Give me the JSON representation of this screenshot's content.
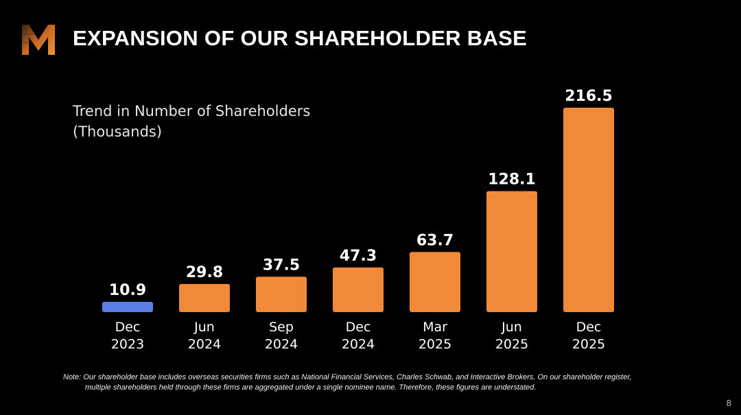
{
  "slide": {
    "title": "EXPANSION OF OUR SHAREHOLDER BASE",
    "page_number": "8",
    "note_line1": "Note: Our shareholder base includes overseas securities firms such as National Financial Services, Charles Schwab, and Interactive Brokers. On our shareholder register,",
    "note_line2": "multiple shareholders held through these firms are aggregated under a single nominee name. Therefore, these figures are understated."
  },
  "colors": {
    "background": "#000000",
    "bar_primary": "#F08A38",
    "bar_highlight": "#5B7FE6",
    "logo_orange": "#E8812E"
  },
  "logo": {
    "icon": "m-logo-icon"
  },
  "chart_data": {
    "type": "bar",
    "title_line1": "Trend in Number of Shareholders",
    "title_line2": "(Thousands)",
    "xlabel": "",
    "ylabel": "",
    "ylim": [
      0,
      216.5
    ],
    "categories": [
      [
        "Dec",
        "2023"
      ],
      [
        "Jun",
        "2024"
      ],
      [
        "Sep",
        "2024"
      ],
      [
        "Dec",
        "2024"
      ],
      [
        "Mar",
        "2025"
      ],
      [
        "Jun",
        "2025"
      ],
      [
        "Dec",
        "2025"
      ]
    ],
    "values": [
      10.9,
      29.8,
      37.5,
      47.3,
      63.7,
      128.1,
      216.5
    ],
    "value_labels": [
      "10.9",
      "29.8",
      "37.5",
      "47.3",
      "63.7",
      "128.1",
      "216.5"
    ],
    "highlight_index": 0,
    "grid": false
  }
}
